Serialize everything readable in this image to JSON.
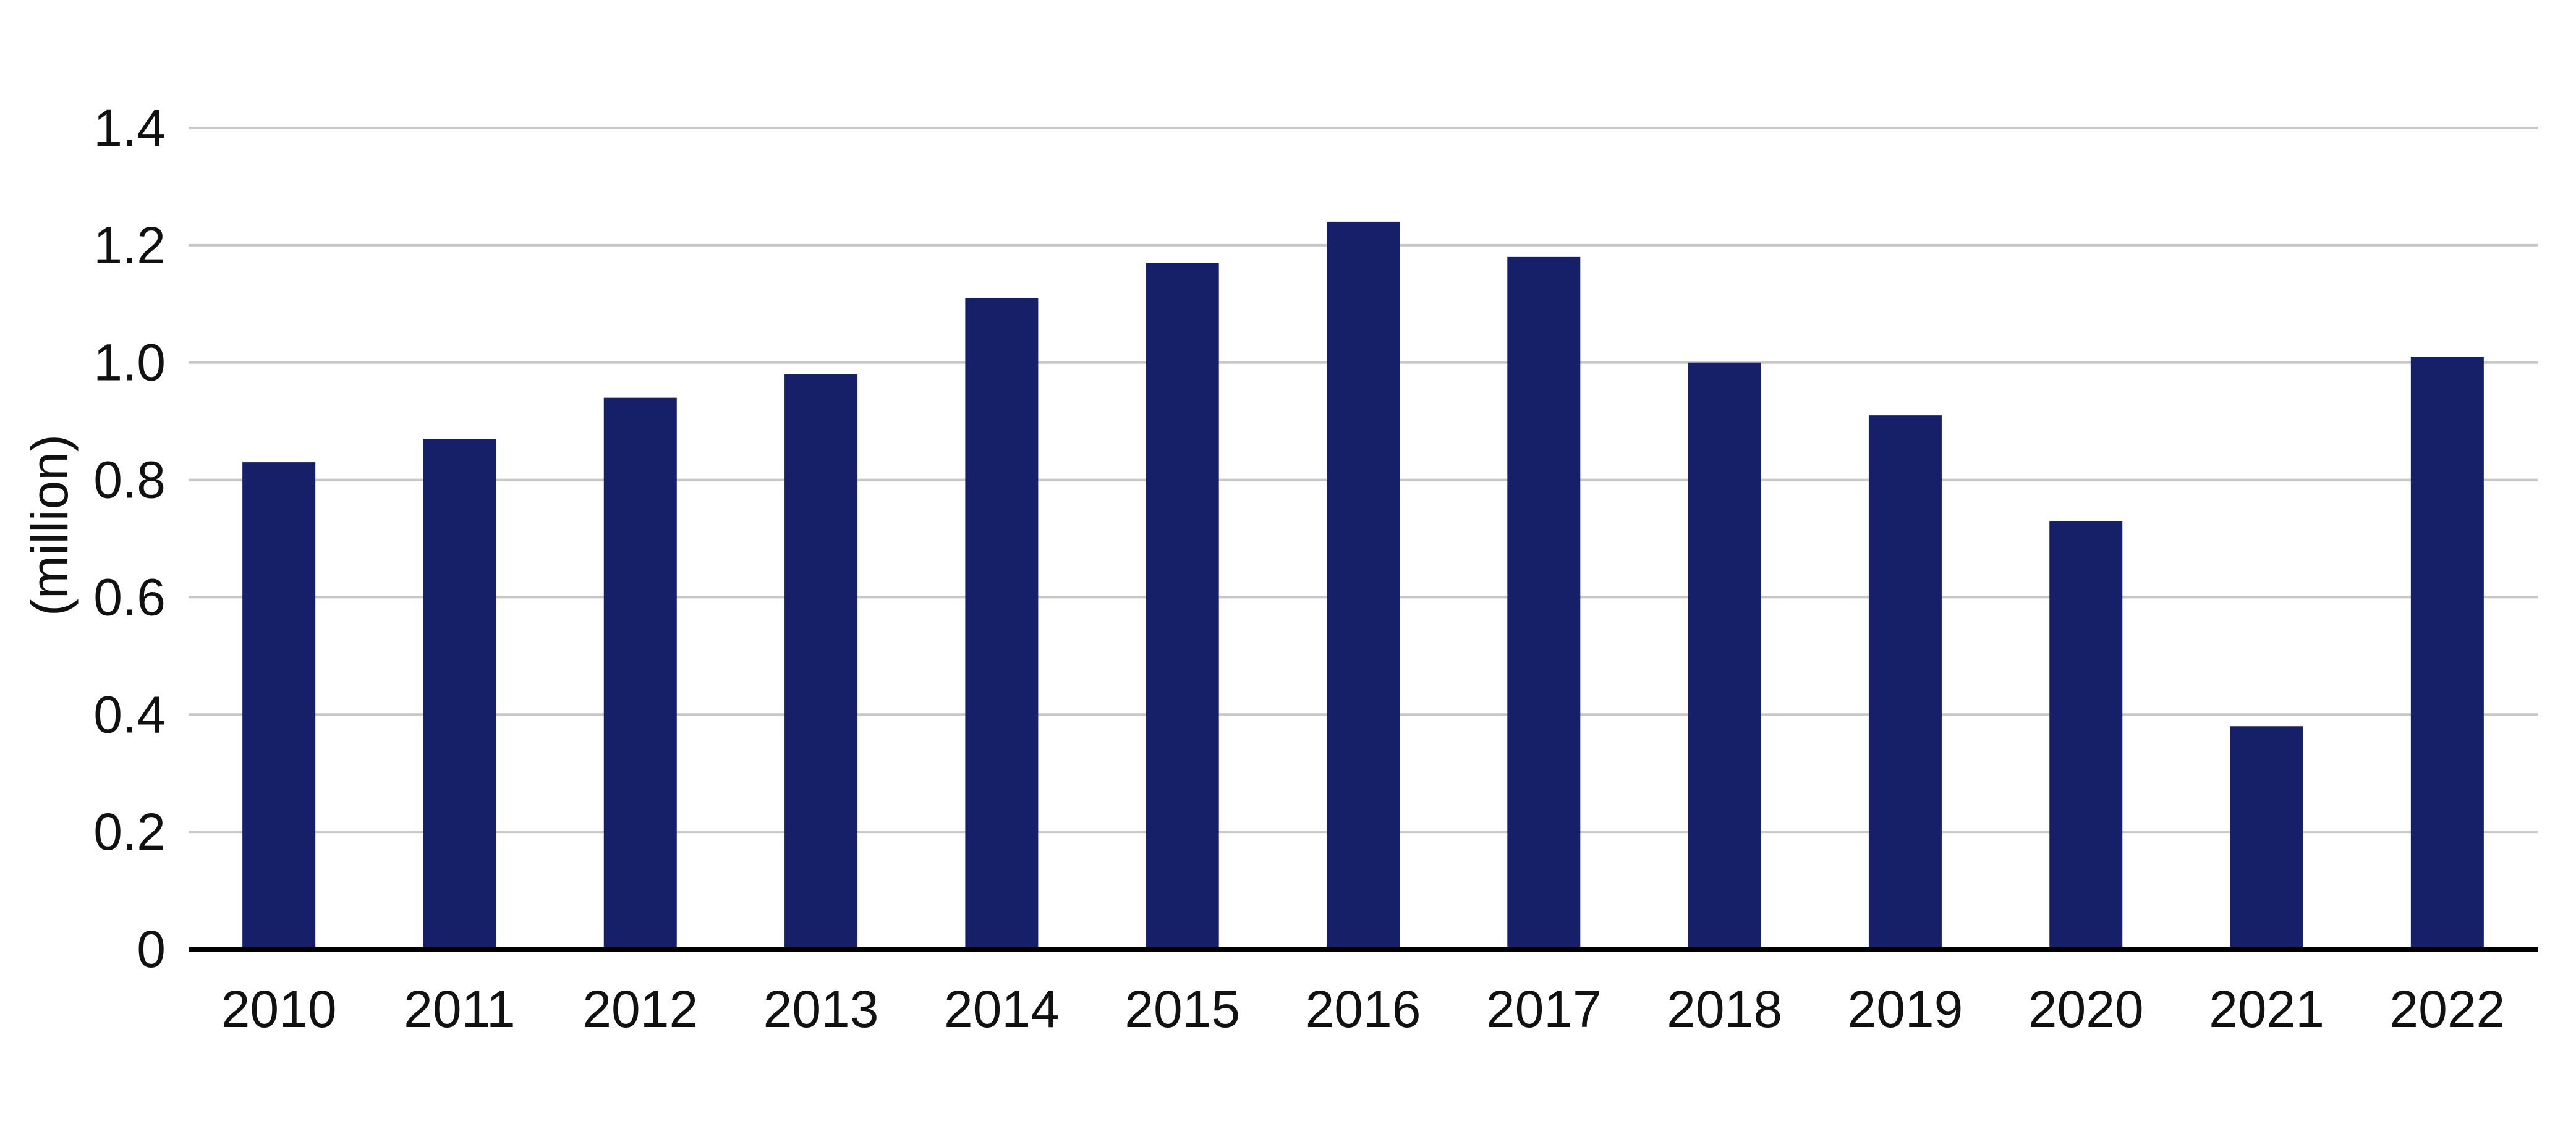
{
  "chart_data": {
    "type": "bar",
    "title": "",
    "xlabel": "",
    "ylabel": "(million)",
    "categories": [
      "2010",
      "2011",
      "2012",
      "2013",
      "2014",
      "2015",
      "2016",
      "2017",
      "2018",
      "2019",
      "2020",
      "2021",
      "2022"
    ],
    "values": [
      0.83,
      0.87,
      0.94,
      0.98,
      1.11,
      1.17,
      1.24,
      1.18,
      1.0,
      0.91,
      0.73,
      0.38,
      1.01
    ],
    "ylim": [
      0,
      1.4
    ],
    "yticks": [
      "0",
      "0.2",
      "0.4",
      "0.6",
      "0.8",
      "1.0",
      "1.2",
      "1.4"
    ],
    "grid": true,
    "legend": "none",
    "colors": {
      "bar": "#152068",
      "grid": "#c8c8c8",
      "axis": "#000000"
    }
  }
}
